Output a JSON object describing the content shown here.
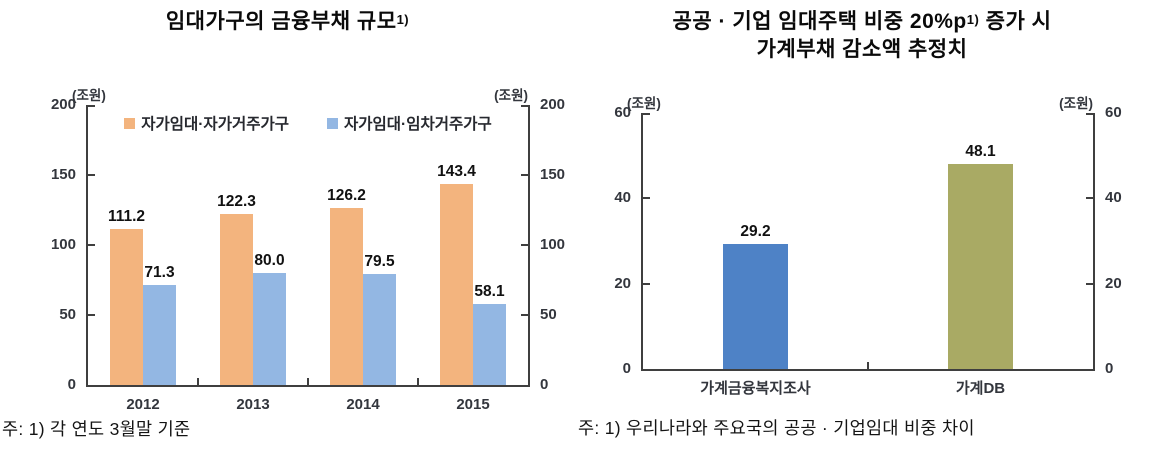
{
  "chart_data": [
    {
      "type": "bar",
      "title": "임대가구의 금융부채 규모",
      "title_sup": "1)",
      "unit_left": "(조원)",
      "unit_right": "(조원)",
      "categories": [
        "2012",
        "2013",
        "2014",
        "2015"
      ],
      "series": [
        {
          "name": "자가임대·자가거주가구",
          "color": "#F3B47E",
          "values": [
            111.2,
            122.3,
            126.2,
            143.4
          ]
        },
        {
          "name": "자가임대·임차거주가구",
          "color": "#93B7E3",
          "values": [
            71.3,
            80.0,
            79.5,
            58.1
          ]
        }
      ],
      "ylim": [
        0,
        200
      ],
      "yticks": [
        0,
        50,
        100,
        150,
        200
      ],
      "grid": false,
      "legend_position": "top-inside",
      "note": "주: 1) 각 연도 3월말 기준"
    },
    {
      "type": "bar",
      "title_line1a": "공공 · 기업 임대주택 비중 20%p",
      "title_sup": "1)",
      "title_line1b": " 증가 시",
      "title_line2": "가계부채 감소액 추정치",
      "unit_left": "(조원)",
      "unit_right": "(조원)",
      "categories": [
        "가계금융복지조사",
        "가계DB"
      ],
      "series": [
        {
          "name": "가계부채 감소액",
          "values": [
            29.2,
            48.1
          ]
        }
      ],
      "bar_colors": [
        "#4E82C6",
        "#A9AA64"
      ],
      "ylim": [
        0,
        60
      ],
      "yticks": [
        0,
        20,
        40,
        60
      ],
      "grid": false,
      "legend_position": "none",
      "note": "주: 1) 우리나라와 주요국의 공공 · 기업임대 비중 차이"
    }
  ]
}
